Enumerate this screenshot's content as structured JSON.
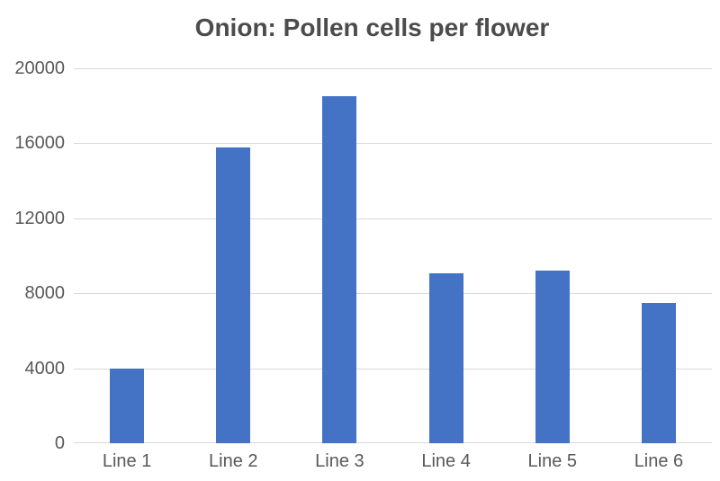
{
  "chart_data": {
    "type": "bar",
    "title": "Onion: Pollen cells per flower",
    "categories": [
      "Line 1",
      "Line 2",
      "Line 3",
      "Line 4",
      "Line 5",
      "Line 6"
    ],
    "values": [
      4000,
      15800,
      18500,
      9050,
      9200,
      7500
    ],
    "xlabel": "",
    "ylabel": "",
    "ylim": [
      0,
      20000
    ],
    "yticks": [
      0,
      4000,
      8000,
      12000,
      16000,
      20000
    ],
    "grid": true,
    "legend": "none",
    "colors": {
      "bar": "#4472C4",
      "title": "#4c4c4c",
      "axis_labels": "#595959",
      "gridlines": "#D9D9D9"
    }
  }
}
